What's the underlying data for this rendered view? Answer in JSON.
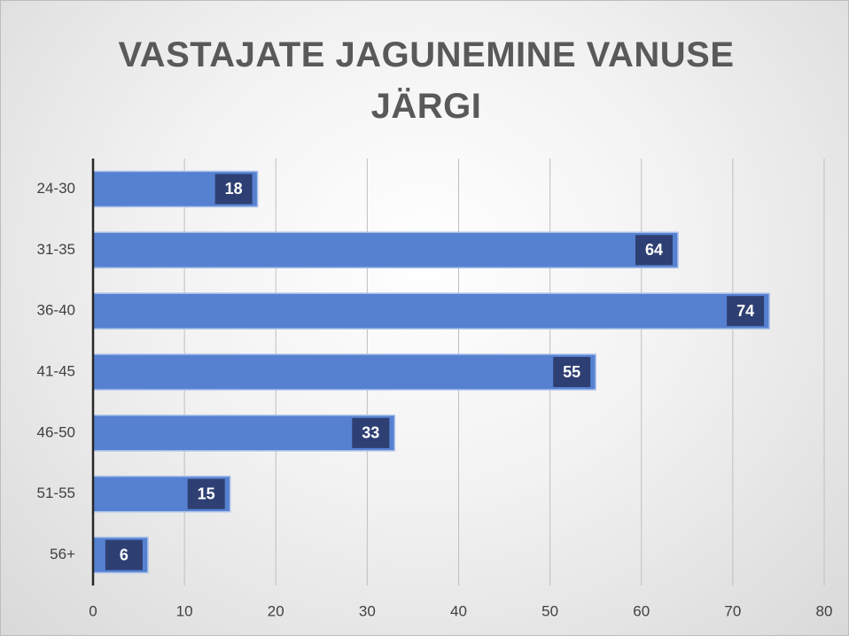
{
  "chart_data": {
    "type": "bar",
    "orientation": "horizontal",
    "title": "VASTAJATE JAGUNEMINE VANUSE JÄRGI",
    "categories": [
      "24-30",
      "31-35",
      "36-40",
      "41-45",
      "46-50",
      "51-55",
      "56+"
    ],
    "values": [
      18,
      64,
      74,
      55,
      33,
      15,
      6
    ],
    "color": "#5681d1",
    "xlim": [
      0,
      80
    ],
    "xticks": [
      0,
      10,
      20,
      30,
      40,
      50,
      60,
      70,
      80
    ],
    "grid": true
  }
}
